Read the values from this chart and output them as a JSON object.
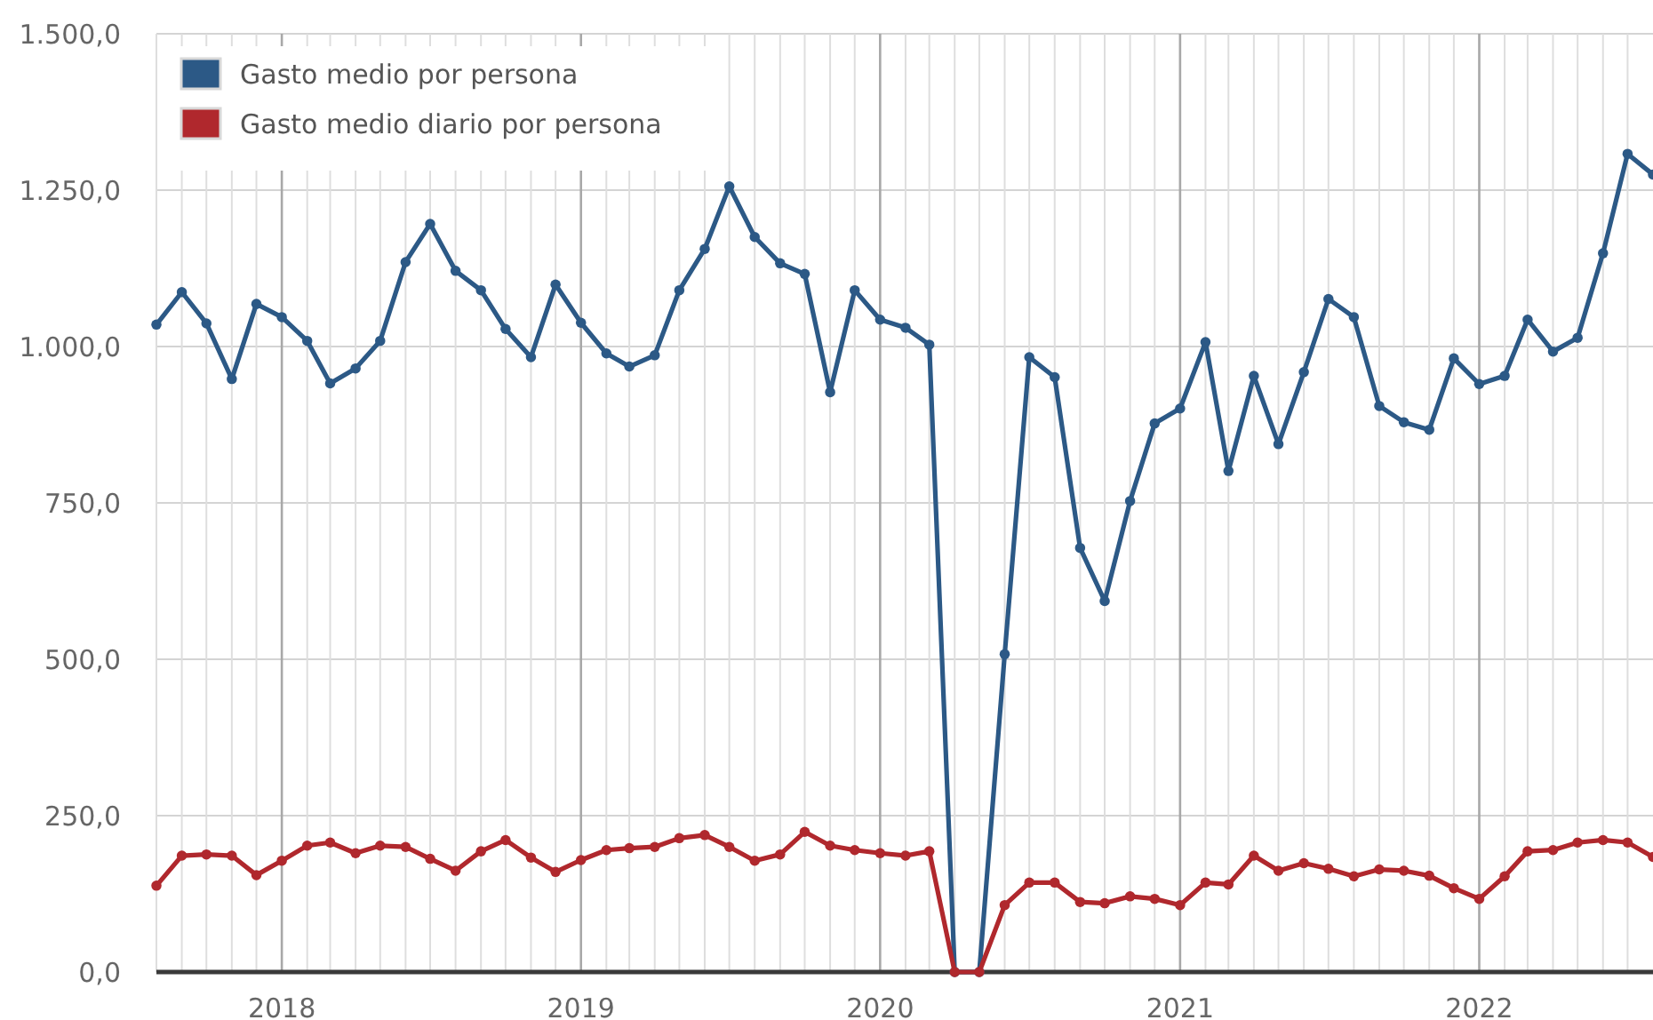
{
  "chart_data": {
    "type": "line",
    "x": [
      "2017-08",
      "2017-09",
      "2017-10",
      "2017-11",
      "2017-12",
      "2018-01",
      "2018-02",
      "2018-03",
      "2018-04",
      "2018-05",
      "2018-06",
      "2018-07",
      "2018-08",
      "2018-09",
      "2018-10",
      "2018-11",
      "2018-12",
      "2019-01",
      "2019-02",
      "2019-03",
      "2019-04",
      "2019-05",
      "2019-06",
      "2019-07",
      "2019-08",
      "2019-09",
      "2019-10",
      "2019-11",
      "2019-12",
      "2020-01",
      "2020-02",
      "2020-03",
      "2020-04",
      "2020-05",
      "2020-06",
      "2020-07",
      "2020-08",
      "2020-09",
      "2020-10",
      "2020-11",
      "2020-12",
      "2021-01",
      "2021-02",
      "2021-03",
      "2021-04",
      "2021-05",
      "2021-06",
      "2021-07",
      "2021-08",
      "2021-09",
      "2021-10",
      "2021-11",
      "2021-12",
      "2022-01",
      "2022-02",
      "2022-03",
      "2022-04",
      "2022-05",
      "2022-06",
      "2022-07",
      "2022-08"
    ],
    "series": [
      {
        "name": "Gasto medio por persona",
        "color": "#2c5986",
        "values": [
          1035,
          1087,
          1037,
          948,
          1068,
          1047,
          1009,
          941,
          965,
          1009,
          1135,
          1196,
          1121,
          1090,
          1028,
          983,
          1099,
          1038,
          989,
          968,
          986,
          1090,
          1156,
          1256,
          1175,
          1133,
          1116,
          927,
          1090,
          1043,
          1030,
          1003,
          0,
          0,
          508,
          983,
          951,
          678,
          593,
          753,
          877,
          901,
          1007,
          801,
          953,
          844,
          959,
          1076,
          1047,
          905,
          879,
          867,
          981,
          940,
          953,
          1043,
          992,
          1014,
          1149,
          1308,
          1275
        ]
      },
      {
        "name": "Gasto medio diario por persona",
        "color": "#b0282d",
        "values": [
          138,
          186,
          188,
          186,
          155,
          178,
          202,
          207,
          190,
          202,
          200,
          181,
          162,
          193,
          211,
          183,
          160,
          179,
          195,
          198,
          200,
          214,
          219,
          200,
          178,
          188,
          224,
          202,
          195,
          190,
          186,
          193,
          0,
          0,
          107,
          143,
          143,
          112,
          110,
          121,
          117,
          107,
          143,
          140,
          186,
          162,
          174,
          165,
          153,
          164,
          162,
          154,
          134,
          117,
          153,
          193,
          195,
          207,
          211,
          207,
          184
        ]
      }
    ],
    "xlim": [
      "2017-08",
      "2022-08"
    ],
    "xticks": [
      {
        "value": "2017-08",
        "label": null
      },
      {
        "value": "2017-09",
        "label": null
      },
      {
        "value": "2017-10",
        "label": null
      },
      {
        "value": "2017-11",
        "label": null
      },
      {
        "value": "2017-12",
        "label": null
      },
      {
        "value": "2018-01",
        "label": "2018"
      },
      {
        "value": "2018-02",
        "label": null
      },
      {
        "value": "2018-03",
        "label": null
      },
      {
        "value": "2018-04",
        "label": null
      },
      {
        "value": "2018-05",
        "label": null
      },
      {
        "value": "2018-06",
        "label": null
      },
      {
        "value": "2018-07",
        "label": null
      },
      {
        "value": "2018-08",
        "label": null
      },
      {
        "value": "2018-09",
        "label": null
      },
      {
        "value": "2018-10",
        "label": null
      },
      {
        "value": "2018-11",
        "label": null
      },
      {
        "value": "2018-12",
        "label": null
      },
      {
        "value": "2019-01",
        "label": "2019"
      },
      {
        "value": "2019-02",
        "label": null
      },
      {
        "value": "2019-03",
        "label": null
      },
      {
        "value": "2019-04",
        "label": null
      },
      {
        "value": "2019-05",
        "label": null
      },
      {
        "value": "2019-06",
        "label": null
      },
      {
        "value": "2019-07",
        "label": null
      },
      {
        "value": "2019-08",
        "label": null
      },
      {
        "value": "2019-09",
        "label": null
      },
      {
        "value": "2019-10",
        "label": null
      },
      {
        "value": "2019-11",
        "label": null
      },
      {
        "value": "2019-12",
        "label": null
      },
      {
        "value": "2020-01",
        "label": "2020"
      },
      {
        "value": "2020-02",
        "label": null
      },
      {
        "value": "2020-03",
        "label": null
      },
      {
        "value": "2020-04",
        "label": null
      },
      {
        "value": "2020-05",
        "label": null
      },
      {
        "value": "2020-06",
        "label": null
      },
      {
        "value": "2020-07",
        "label": null
      },
      {
        "value": "2020-08",
        "label": null
      },
      {
        "value": "2020-09",
        "label": null
      },
      {
        "value": "2020-10",
        "label": null
      },
      {
        "value": "2020-11",
        "label": null
      },
      {
        "value": "2020-12",
        "label": null
      },
      {
        "value": "2021-01",
        "label": "2021"
      },
      {
        "value": "2021-02",
        "label": null
      },
      {
        "value": "2021-03",
        "label": null
      },
      {
        "value": "2021-04",
        "label": null
      },
      {
        "value": "2021-05",
        "label": null
      },
      {
        "value": "2021-06",
        "label": null
      },
      {
        "value": "2021-07",
        "label": null
      },
      {
        "value": "2021-08",
        "label": null
      },
      {
        "value": "2021-09",
        "label": null
      },
      {
        "value": "2021-10",
        "label": null
      },
      {
        "value": "2021-11",
        "label": null
      },
      {
        "value": "2021-12",
        "label": null
      },
      {
        "value": "2022-01",
        "label": "2022"
      },
      {
        "value": "2022-02",
        "label": null
      },
      {
        "value": "2022-03",
        "label": null
      },
      {
        "value": "2022-04",
        "label": null
      },
      {
        "value": "2022-05",
        "label": null
      },
      {
        "value": "2022-06",
        "label": null
      },
      {
        "value": "2022-07",
        "label": null
      }
    ],
    "ylim": [
      0,
      1500
    ],
    "yticks": [
      {
        "value": 0,
        "label": "0,0"
      },
      {
        "value": 250,
        "label": "250,0"
      },
      {
        "value": 500,
        "label": "500,0"
      },
      {
        "value": 750,
        "label": "750,0"
      },
      {
        "value": 1000,
        "label": "1.000,0"
      },
      {
        "value": 1250,
        "label": "1.250,0"
      },
      {
        "value": 1500,
        "label": "1.500,0"
      }
    ],
    "grid": true,
    "legend": "top left",
    "marker": "circle"
  }
}
